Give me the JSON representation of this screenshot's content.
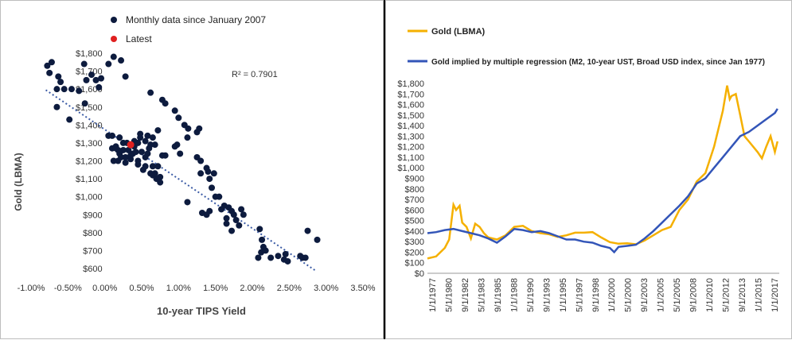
{
  "chart_data": [
    {
      "type": "scatter",
      "title": "",
      "xlabel": "10-year TIPS Yield",
      "ylabel": "Gold (LBMA)",
      "xlim": [
        -0.01,
        0.035
      ],
      "ylim": [
        600,
        1800
      ],
      "x_ticks": [
        "-1.00%",
        "-0.50%",
        "0.00%",
        "0.50%",
        "1.00%",
        "1.50%",
        "2.00%",
        "2.50%",
        "3.00%",
        "3.50%"
      ],
      "y_ticks": [
        "$600",
        "$700",
        "$800",
        "$900",
        "$1,000",
        "$1,100",
        "$1,200",
        "$1,300",
        "$1,400",
        "$1,500",
        "$1,600",
        "$1,700",
        "$1,800"
      ],
      "annotation": "R² = 0.7901",
      "legend": [
        "Monthly data since January 2007",
        "Latest"
      ],
      "legend_position": "top",
      "grid": false,
      "colors": {
        "series": "#0d1b3e",
        "latest": "#e02020",
        "trend": "#3b5ba5"
      },
      "trendline": {
        "x": [
          -0.008,
          0.0285
        ],
        "y": [
          1595,
          590
        ]
      },
      "latest": {
        "x": 0.0035,
        "y": 1290
      },
      "series": [
        {
          "name": "Monthly data since January 2007",
          "points": [
            [
              -0.0078,
              1730
            ],
            [
              -0.0072,
              1750
            ],
            [
              -0.0075,
              1690
            ],
            [
              -0.0063,
              1670
            ],
            [
              -0.006,
              1640
            ],
            [
              -0.0065,
              1600
            ],
            [
              -0.0055,
              1600
            ],
            [
              -0.0045,
              1600
            ],
            [
              -0.0035,
              1590
            ],
            [
              -0.0027,
              1520
            ],
            [
              -0.0065,
              1500
            ],
            [
              -0.0048,
              1430
            ],
            [
              -0.0028,
              1740
            ],
            [
              -0.0025,
              1650
            ],
            [
              -0.0018,
              1680
            ],
            [
              -0.0012,
              1650
            ],
            [
              -0.0005,
              1660
            ],
            [
              -0.0008,
              1610
            ],
            [
              0.0005,
              1740
            ],
            [
              0.0012,
              1780
            ],
            [
              0.0022,
              1760
            ],
            [
              0.0028,
              1670
            ],
            [
              0.0005,
              1340
            ],
            [
              0.001,
              1340
            ],
            [
              0.002,
              1330
            ],
            [
              0.0015,
              1280
            ],
            [
              0.003,
              1300
            ],
            [
              0.004,
              1280
            ],
            [
              0.0018,
              1200
            ],
            [
              0.0028,
              1190
            ],
            [
              0.0035,
              1210
            ],
            [
              0.0045,
              1180
            ],
            [
              0.0055,
              1170
            ],
            [
              0.0062,
              1130
            ],
            [
              0.0065,
              1120
            ],
            [
              0.0052,
              1150
            ],
            [
              0.0045,
              1200
            ],
            [
              0.0038,
              1240
            ],
            [
              0.0032,
              1260
            ],
            [
              0.0025,
              1260
            ],
            [
              0.002,
              1240
            ],
            [
              0.0012,
              1200
            ],
            [
              0.001,
              1270
            ],
            [
              0.0025,
              1300
            ],
            [
              0.004,
              1310
            ],
            [
              0.0048,
              1330
            ],
            [
              0.0058,
              1340
            ],
            [
              0.0065,
              1330
            ],
            [
              0.0072,
              1370
            ],
            [
              0.0068,
              1290
            ],
            [
              0.0062,
              1290
            ],
            [
              0.006,
              1270
            ],
            [
              0.0058,
              1240
            ],
            [
              0.0055,
              1220
            ],
            [
              0.005,
              1250
            ],
            [
              0.0042,
              1250
            ],
            [
              0.0035,
              1230
            ],
            [
              0.0028,
              1220
            ],
            [
              0.0022,
              1220
            ],
            [
              0.0018,
              1260
            ],
            [
              0.0015,
              1270
            ],
            [
              0.0045,
              1300
            ],
            [
              0.0072,
              1170
            ],
            [
              0.0078,
              1230
            ],
            [
              0.0082,
              1230
            ],
            [
              0.0075,
              1110
            ],
            [
              0.007,
              1100
            ],
            [
              0.0075,
              1080
            ],
            [
              0.0068,
              1130
            ],
            [
              0.0065,
              1170
            ],
            [
              0.0055,
              1310
            ],
            [
              0.0048,
              1350
            ],
            [
              0.0062,
              1580
            ],
            [
              0.0078,
              1540
            ],
            [
              0.0082,
              1520
            ],
            [
              0.0095,
              1480
            ],
            [
              0.01,
              1440
            ],
            [
              0.0108,
              1400
            ],
            [
              0.0113,
              1380
            ],
            [
              0.0112,
              1330
            ],
            [
              0.0098,
              1290
            ],
            [
              0.0095,
              1280
            ],
            [
              0.0102,
              1240
            ],
            [
              0.0125,
              1360
            ],
            [
              0.0128,
              1380
            ],
            [
              0.0125,
              1220
            ],
            [
              0.013,
              1200
            ],
            [
              0.0138,
              1160
            ],
            [
              0.013,
              1130
            ],
            [
              0.014,
              1140
            ],
            [
              0.0148,
              1130
            ],
            [
              0.0142,
              1100
            ],
            [
              0.0145,
              1050
            ],
            [
              0.0155,
              1000
            ],
            [
              0.0162,
              950
            ],
            [
              0.0168,
              940
            ],
            [
              0.0172,
              920
            ],
            [
              0.0165,
              880
            ],
            [
              0.0175,
              900
            ],
            [
              0.0178,
              870
            ],
            [
              0.0182,
              840
            ],
            [
              0.0172,
              810
            ],
            [
              0.0165,
              850
            ],
            [
              0.0158,
              930
            ],
            [
              0.015,
              1000
            ],
            [
              0.0142,
              920
            ],
            [
              0.0138,
              900
            ],
            [
              0.0132,
              910
            ],
            [
              0.0112,
              970
            ],
            [
              0.0185,
              930
            ],
            [
              0.0188,
              900
            ],
            [
              0.021,
              820
            ],
            [
              0.0213,
              760
            ],
            [
              0.0215,
              720
            ],
            [
              0.0212,
              690
            ],
            [
              0.0208,
              660
            ],
            [
              0.0218,
              700
            ],
            [
              0.0225,
              660
            ],
            [
              0.0235,
              670
            ],
            [
              0.0245,
              680
            ],
            [
              0.0243,
              650
            ],
            [
              0.0248,
              640
            ],
            [
              0.0265,
              670
            ],
            [
              0.0268,
              660
            ],
            [
              0.0272,
              660
            ],
            [
              0.0275,
              810
            ],
            [
              0.0288,
              760
            ]
          ]
        }
      ]
    },
    {
      "type": "line",
      "title": "",
      "xlabel": "",
      "ylabel": "",
      "ylim": [
        0,
        1800
      ],
      "y_ticks": [
        "$0",
        "$100",
        "$200",
        "$300",
        "$400",
        "$500",
        "$600",
        "$700",
        "$800",
        "$900",
        "$1,000",
        "$1,100",
        "$1,200",
        "$1,300",
        "$1,400",
        "$1,500",
        "$1,600",
        "$1,700",
        "$1,800"
      ],
      "x_ticks": [
        "1/1/1977",
        "5/1/1980",
        "9/1/1982",
        "5/1/1983",
        "9/1/1985",
        "1/1/1988",
        "5/1/1990",
        "9/1/1993",
        "1/1/1995",
        "5/1/1997",
        "9/1/1998",
        "1/1/2000",
        "5/1/2000",
        "9/1/2003",
        "1/1/2005",
        "5/1/2005",
        "9/1/2008",
        "1/1/2010",
        "5/1/2012",
        "9/1/2013",
        "1/1/2015",
        "1/1/2017"
      ],
      "legend_position": "top-left",
      "grid": false,
      "series": [
        {
          "name": "Gold (LBMA)",
          "color": "#f5b000",
          "x": [
            1977,
            1978,
            1979,
            1979.5,
            1980,
            1980.3,
            1980.7,
            1981,
            1981.5,
            1982,
            1982.5,
            1983,
            1983.5,
            1984,
            1985,
            1986,
            1987,
            1988,
            1989,
            1990,
            1991,
            1992,
            1993,
            1994,
            1995,
            1996,
            1997,
            1998,
            1999,
            2000,
            2001,
            2002,
            2003,
            2004,
            2005,
            2006,
            2007,
            2008,
            2009,
            2010,
            2011,
            2011.5,
            2011.8,
            2012,
            2012.5,
            2013,
            2013.5,
            2014,
            2015,
            2015.5,
            2016,
            2016.5,
            2017,
            2017.3
          ],
          "y": [
            140,
            160,
            240,
            320,
            650,
            600,
            640,
            480,
            440,
            330,
            470,
            440,
            380,
            340,
            320,
            360,
            440,
            450,
            400,
            380,
            370,
            345,
            360,
            385,
            385,
            390,
            340,
            295,
            280,
            285,
            275,
            310,
            360,
            410,
            440,
            600,
            700,
            870,
            950,
            1200,
            1540,
            1780,
            1650,
            1680,
            1700,
            1500,
            1300,
            1250,
            1150,
            1090,
            1200,
            1300,
            1150,
            1250
          ]
        },
        {
          "name": "Gold implied by multiple regression (M2, 10-year UST, Broad USD index, since Jan 1977)",
          "color": "#3355b8",
          "x": [
            1977,
            1978,
            1979,
            1980,
            1981,
            1982,
            1983,
            1984,
            1985,
            1986,
            1987,
            1988,
            1989,
            1990,
            1991,
            1992,
            1993,
            1994,
            1995,
            1996,
            1997,
            1998,
            1998.5,
            1999,
            2000,
            2001,
            2002,
            2003,
            2004,
            2005,
            2006,
            2007,
            2008,
            2009,
            2010,
            2011,
            2012,
            2013,
            2014,
            2015,
            2016,
            2017,
            2017.3
          ],
          "y": [
            380,
            390,
            410,
            420,
            400,
            380,
            360,
            330,
            290,
            350,
            420,
            410,
            390,
            400,
            380,
            350,
            320,
            320,
            300,
            290,
            260,
            240,
            200,
            250,
            260,
            270,
            330,
            400,
            480,
            560,
            640,
            730,
            850,
            900,
            1000,
            1100,
            1200,
            1300,
            1340,
            1400,
            1460,
            1520,
            1560
          ]
        }
      ]
    }
  ]
}
